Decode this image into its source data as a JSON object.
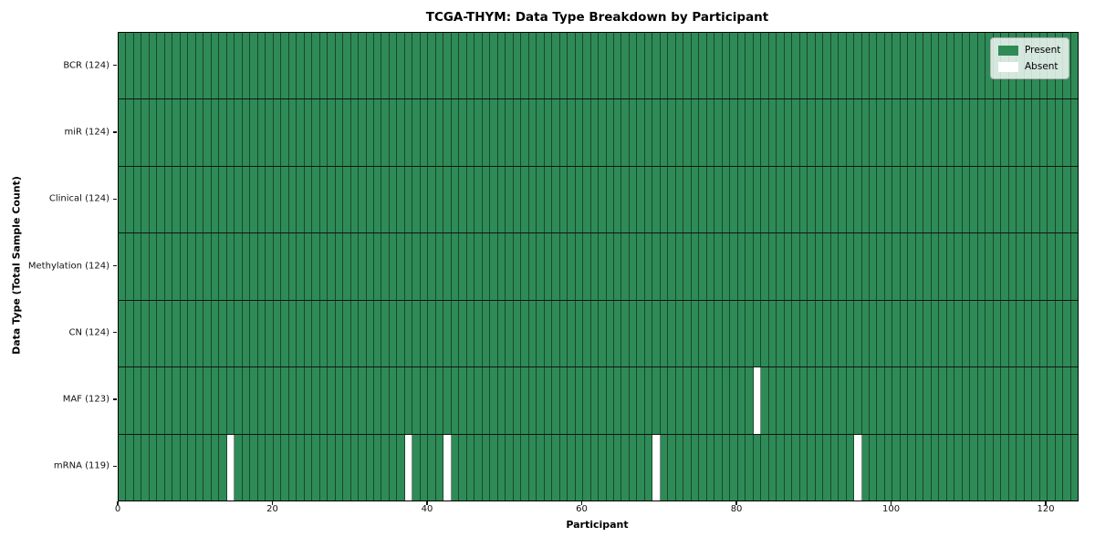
{
  "figure": {
    "title": "TCGA-THYM: Data Type Breakdown by Participant",
    "xlabel": "Participant",
    "ylabel": "Data Type (Total Sample Count)"
  },
  "legend": {
    "items": [
      {
        "name": "present",
        "label": "Present",
        "color": "#2e8b57"
      },
      {
        "name": "absent",
        "label": "Absent",
        "color": "#ffffff"
      }
    ]
  },
  "chart_data": {
    "type": "heatmap",
    "title": "TCGA-THYM: Data Type Breakdown by Participant",
    "xlabel": "Participant",
    "ylabel": "Data Type (Total Sample Count)",
    "legend_position": "upper right",
    "legend_entries": [
      "Present",
      "Absent"
    ],
    "present_color": "#2e8b57",
    "absent_color": "#ffffff",
    "n_participants": 124,
    "xlim": [
      0,
      124
    ],
    "x_ticks": [
      0,
      20,
      40,
      60,
      80,
      100,
      120
    ],
    "grid": false,
    "rows": [
      {
        "data_type": "BCR",
        "label": "BCR (124)",
        "total": 124,
        "absent_participants": []
      },
      {
        "data_type": "miR",
        "label": "miR (124)",
        "total": 124,
        "absent_participants": []
      },
      {
        "data_type": "Clinical",
        "label": "Clinical (124)",
        "total": 124,
        "absent_participants": []
      },
      {
        "data_type": "Methylation",
        "label": "Methylation (124)",
        "total": 124,
        "absent_participants": []
      },
      {
        "data_type": "CN",
        "label": "CN (124)",
        "total": 124,
        "absent_participants": []
      },
      {
        "data_type": "MAF",
        "label": "MAF (123)",
        "total": 123,
        "absent_participants": [
          82
        ]
      },
      {
        "data_type": "mRNA",
        "label": "mRNA (119)",
        "total": 119,
        "absent_participants": [
          14,
          37,
          42,
          69,
          95
        ]
      }
    ]
  }
}
